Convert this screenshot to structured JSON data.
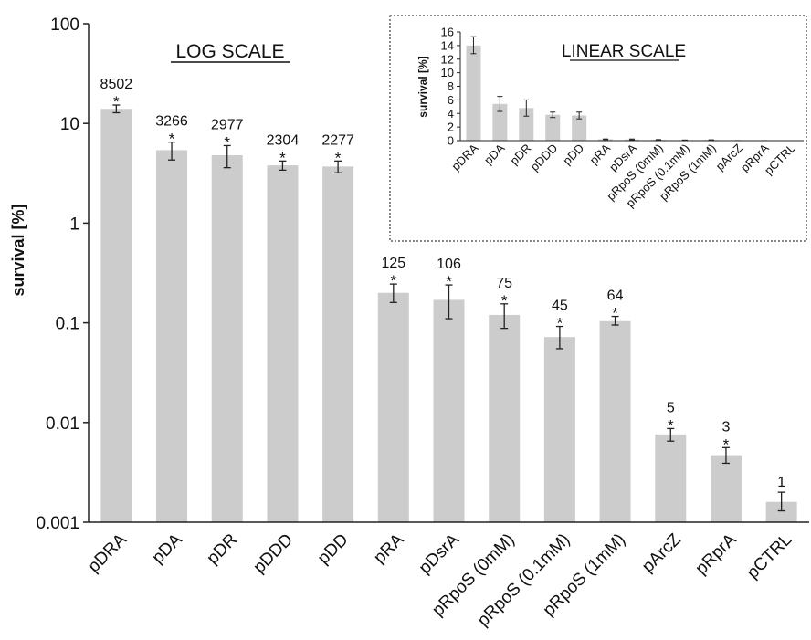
{
  "chart_data": [
    {
      "type": "bar",
      "title": "LOG SCALE",
      "ylabel": "survival [%]",
      "yscale": "log",
      "ylim": [
        0.001,
        100
      ],
      "ytick_labels": [
        "0.001",
        "0.01",
        "0.1",
        "1",
        "10",
        "100"
      ],
      "grid": false,
      "categories": [
        "pDRA",
        "pDA",
        "pDR",
        "pDDD",
        "pDD",
        "pRA",
        "pDsrA",
        "pRpoS (0mM)",
        "pRpoS (0.1mM)",
        "pRpoS (1mM)",
        "pArcZ",
        "pRprA",
        "pCTRL"
      ],
      "values": [
        14.0,
        5.4,
        4.8,
        3.8,
        3.7,
        0.2,
        0.17,
        0.12,
        0.072,
        0.104,
        0.0076,
        0.0047,
        0.0016
      ],
      "error_low": [
        12.8,
        4.3,
        3.6,
        3.4,
        3.2,
        0.16,
        0.11,
        0.088,
        0.055,
        0.095,
        0.0065,
        0.0039,
        0.0013
      ],
      "error_high": [
        15.3,
        6.5,
        6.0,
        4.2,
        4.2,
        0.245,
        0.24,
        0.155,
        0.092,
        0.116,
        0.0087,
        0.0056,
        0.002
      ],
      "annotations": [
        "8502",
        "3266",
        "2977",
        "2304",
        "2277",
        "125",
        "106",
        "75",
        "45",
        "64",
        "5",
        "3",
        "1"
      ],
      "significance": [
        true,
        true,
        true,
        true,
        true,
        true,
        true,
        true,
        true,
        true,
        true,
        true,
        false
      ],
      "significance_mark": "*",
      "bar_color": "#cccccc"
    },
    {
      "type": "bar",
      "title": "LINEAR SCALE",
      "ylabel": "survival [%]",
      "yscale": "linear",
      "ylim": [
        0,
        16
      ],
      "ytick_labels": [
        "0",
        "2",
        "4",
        "6",
        "8",
        "10",
        "12",
        "14",
        "16"
      ],
      "grid": false,
      "categories": [
        "pDRA",
        "pDA",
        "pDR",
        "pDDD",
        "pDD",
        "pRA",
        "pDsrA",
        "pRpoS (0mM)",
        "pRpoS (0.1mM)",
        "pRpoS (1mM)",
        "pArcZ",
        "pRprA",
        "pCTRL"
      ],
      "values": [
        14.0,
        5.4,
        4.8,
        3.8,
        3.7,
        0.2,
        0.17,
        0.12,
        0.072,
        0.104,
        0.0076,
        0.0047,
        0.0016
      ],
      "error_low": [
        12.8,
        4.3,
        3.6,
        3.4,
        3.2,
        0.16,
        0.11,
        0.088,
        0.055,
        0.095,
        0.0065,
        0.0039,
        0.0013
      ],
      "error_high": [
        15.3,
        6.5,
        6.0,
        4.2,
        4.2,
        0.245,
        0.24,
        0.155,
        0.092,
        0.116,
        0.0087,
        0.0056,
        0.002
      ],
      "bar_color": "#cccccc"
    }
  ]
}
